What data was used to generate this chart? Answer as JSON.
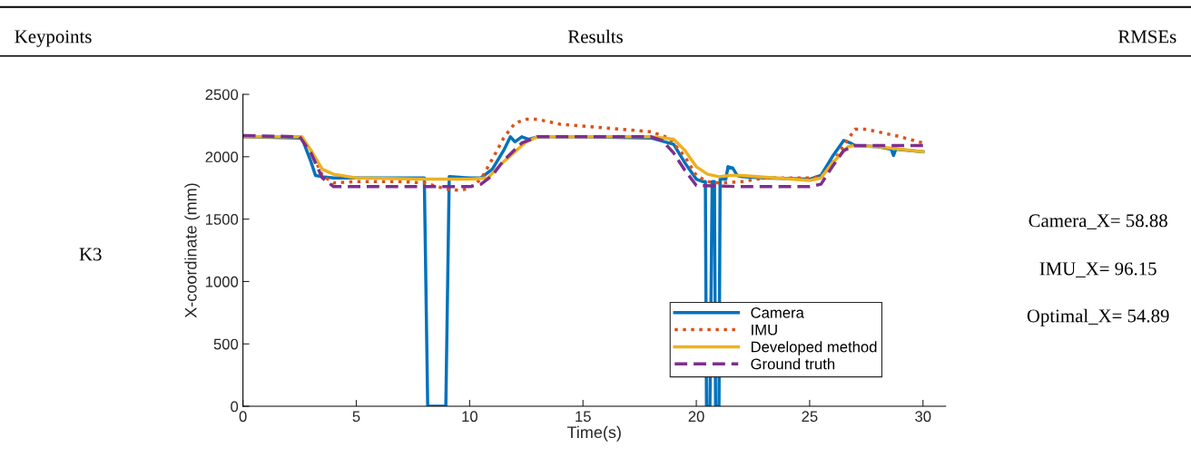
{
  "chart_data": {
    "type": "line",
    "xlabel": "Time(s)",
    "ylabel": "X-coordinate (mm)",
    "xlim": [
      0,
      31
    ],
    "xticks": [
      0,
      5,
      10,
      15,
      20,
      25,
      30
    ],
    "ylim": [
      0,
      2500
    ],
    "yticks": [
      0,
      500,
      1000,
      1500,
      2000,
      2500
    ],
    "grid": false,
    "legend": "bottom right",
    "annotations": [
      "Keypoints",
      "Results",
      "RMSEs",
      "K3",
      "Camera_X= 58.88",
      "IMU_X= 96.15",
      "Optimal_X= 54.89"
    ],
    "series": [
      {
        "name": "Camera",
        "color": "#0072bd",
        "line_style": "solid",
        "x": [
          0,
          2.6,
          3.0,
          3.2,
          3.5,
          4,
          5,
          6,
          7,
          8.0,
          8.15,
          8.95,
          9.1,
          10,
          10.5,
          11,
          11.5,
          11.8,
          12,
          12.3,
          12.6,
          13,
          15,
          18,
          19,
          19.5,
          20,
          20.3,
          20.4,
          20.45,
          20.6,
          20.7,
          20.8,
          20.85,
          21.0,
          21.05,
          21.3,
          21.4,
          21.6,
          21.8,
          22,
          23,
          25,
          25.5,
          26,
          26.5,
          26.8,
          27,
          28,
          28.6,
          28.7,
          28.8,
          30
        ],
        "values": [
          2160,
          2150,
          1960,
          1850,
          1840,
          1830,
          1830,
          1830,
          1830,
          1830,
          0,
          0,
          1840,
          1830,
          1830,
          1900,
          2050,
          2160,
          2120,
          2160,
          2140,
          2160,
          2160,
          2150,
          2100,
          1950,
          1820,
          1800,
          1800,
          0,
          0,
          1800,
          1800,
          0,
          0,
          1820,
          1820,
          1920,
          1910,
          1850,
          1840,
          1830,
          1820,
          1850,
          2000,
          2130,
          2110,
          2090,
          2080,
          2060,
          2010,
          2060,
          2040
        ]
      },
      {
        "name": "IMU",
        "color": "#d95319",
        "line_style": "dotted",
        "x": [
          0,
          2.5,
          3,
          3.5,
          4,
          5,
          7,
          8,
          9,
          9.6,
          10,
          10.5,
          11,
          11.5,
          12,
          12.5,
          13,
          14,
          16,
          18,
          18.8,
          19.5,
          20,
          20.5,
          21,
          22,
          23,
          25,
          25.5,
          26,
          26.5,
          27,
          27.5,
          28,
          29,
          30
        ],
        "values": [
          2160,
          2160,
          2050,
          1850,
          1790,
          1800,
          1800,
          1790,
          1740,
          1730,
          1750,
          1820,
          1980,
          2150,
          2270,
          2300,
          2300,
          2260,
          2230,
          2200,
          2150,
          2000,
          1850,
          1800,
          1790,
          1800,
          1830,
          1830,
          1840,
          1950,
          2090,
          2220,
          2220,
          2200,
          2160,
          2110
        ]
      },
      {
        "name": "Developed method",
        "color": "#edb120",
        "line_style": "solid",
        "x": [
          0,
          2.6,
          3,
          3.5,
          4,
          5,
          8,
          10,
          10.8,
          11.5,
          12.5,
          13,
          18,
          19,
          19.5,
          20,
          20.5,
          21,
          21.5,
          22,
          25,
          25.5,
          26,
          26.7,
          27,
          28,
          30
        ],
        "values": [
          2160,
          2160,
          2050,
          1900,
          1860,
          1830,
          1820,
          1820,
          1830,
          1960,
          2120,
          2160,
          2160,
          2140,
          2050,
          1920,
          1860,
          1840,
          1850,
          1850,
          1810,
          1830,
          1950,
          2080,
          2090,
          2080,
          2040
        ]
      },
      {
        "name": "Ground truth",
        "color": "#7e2f8e",
        "line_style": "dashed",
        "x": [
          0,
          2.5,
          3,
          3.5,
          4,
          5,
          8,
          9,
          10,
          10.5,
          11,
          11.5,
          12.3,
          13,
          18,
          18.5,
          19,
          19.5,
          20,
          22,
          25,
          25.5,
          26,
          26.5,
          27,
          30
        ],
        "values": [
          2170,
          2160,
          2030,
          1830,
          1760,
          1760,
          1760,
          1760,
          1760,
          1780,
          1850,
          1970,
          2110,
          2160,
          2160,
          2130,
          2030,
          1890,
          1770,
          1760,
          1760,
          1780,
          1920,
          2050,
          2090,
          2090
        ]
      }
    ]
  }
}
